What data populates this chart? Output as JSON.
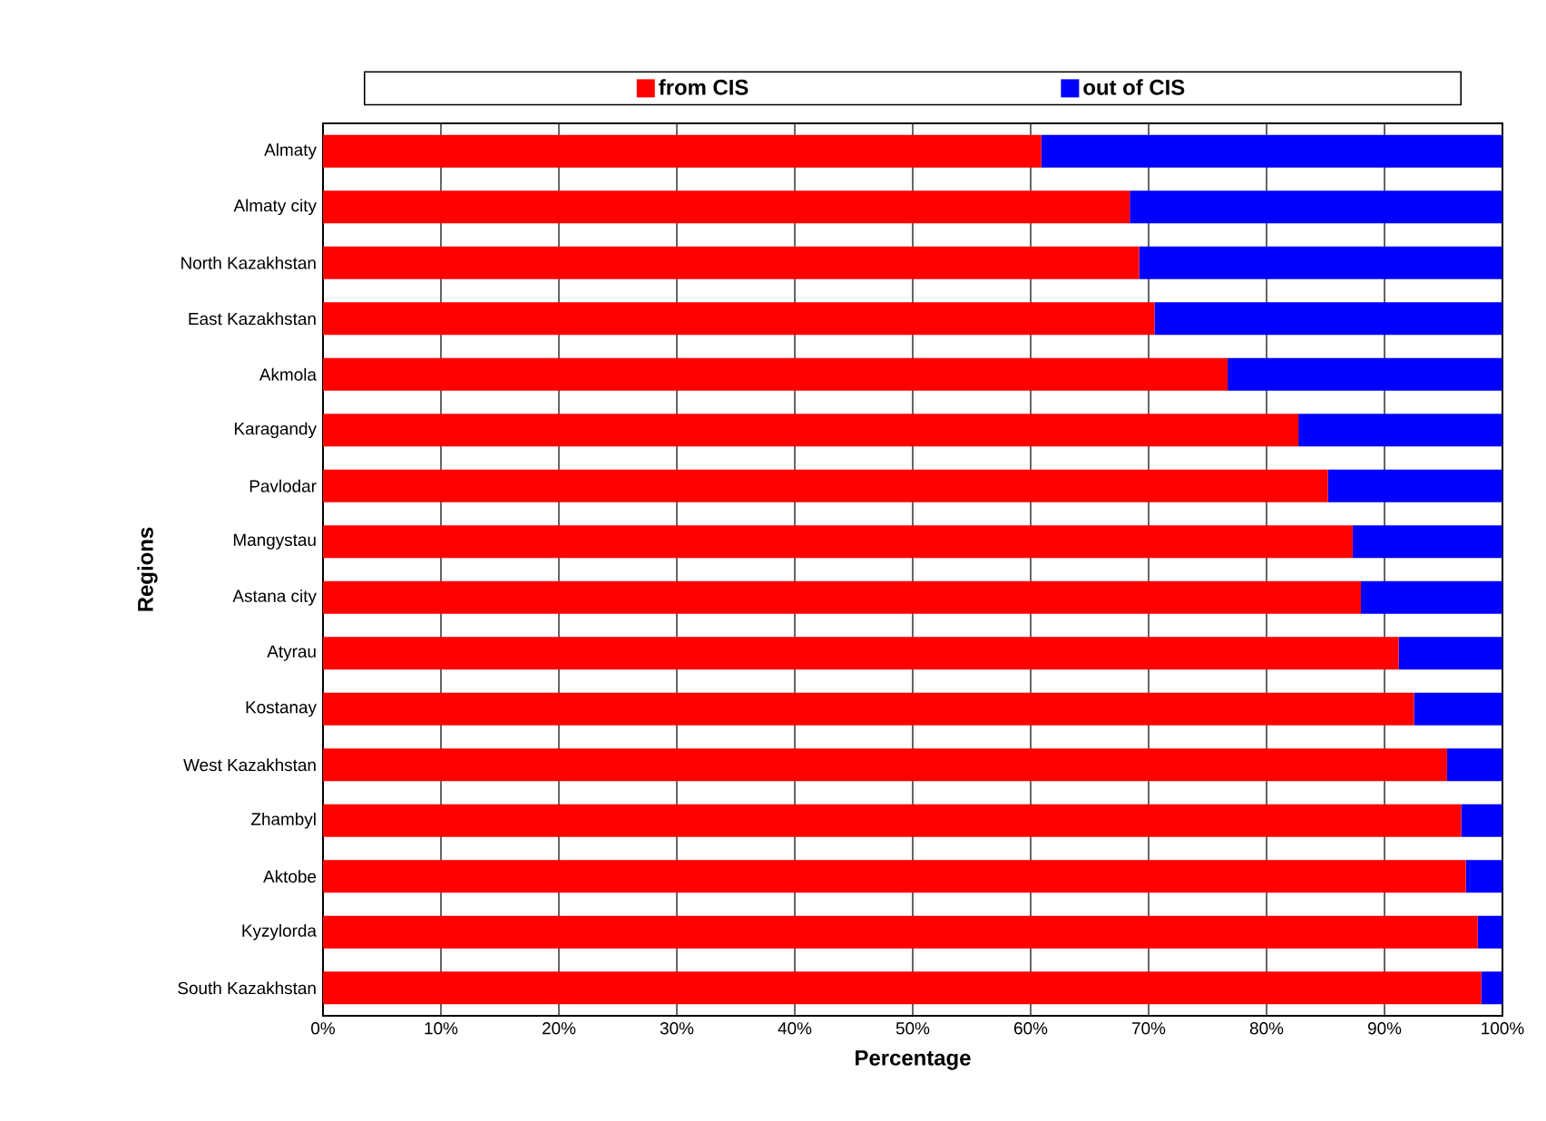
{
  "chart_data": {
    "type": "bar",
    "orientation": "horizontal",
    "stacked": true,
    "xlabel": "Percentage",
    "ylabel": "Regions",
    "categories": [
      "Almaty",
      "Almaty city",
      "North Kazakhstan",
      "East Kazakhstan",
      "Akmola",
      "Karagandy",
      "Pavlodar",
      "Mangystau",
      "Astana city",
      "Atyrau",
      "Kostanay",
      "West Kazakhstan",
      "Zhambyl",
      "Aktobe",
      "Kyzylorda",
      "South Kazakhstan"
    ],
    "series": [
      {
        "name": "from CIS",
        "color": "#ff0000",
        "values": [
          60.9,
          68.4,
          69.2,
          70.5,
          76.7,
          82.7,
          85.2,
          87.3,
          88.0,
          91.2,
          92.5,
          95.3,
          96.5,
          96.9,
          97.9,
          98.2
        ]
      },
      {
        "name": "out of CIS",
        "color": "#0000ff",
        "values": [
          39.1,
          31.6,
          30.8,
          29.5,
          23.3,
          17.3,
          14.8,
          12.7,
          12.0,
          8.8,
          7.5,
          4.7,
          3.5,
          3.1,
          2.1,
          1.8
        ]
      }
    ],
    "xlim": [
      0,
      100
    ],
    "xticks": [
      {
        "value": 0,
        "label": "0%"
      },
      {
        "value": 10,
        "label": "10%"
      },
      {
        "value": 20,
        "label": "20%"
      },
      {
        "value": 30,
        "label": "30%"
      },
      {
        "value": 40,
        "label": "40%"
      },
      {
        "value": 50,
        "label": "50%"
      },
      {
        "value": 60,
        "label": "60%"
      },
      {
        "value": 70,
        "label": "70%"
      },
      {
        "value": 80,
        "label": "80%"
      },
      {
        "value": 90,
        "label": "90%"
      },
      {
        "value": 100,
        "label": "100%"
      }
    ],
    "grid": "x",
    "legend": "top"
  }
}
